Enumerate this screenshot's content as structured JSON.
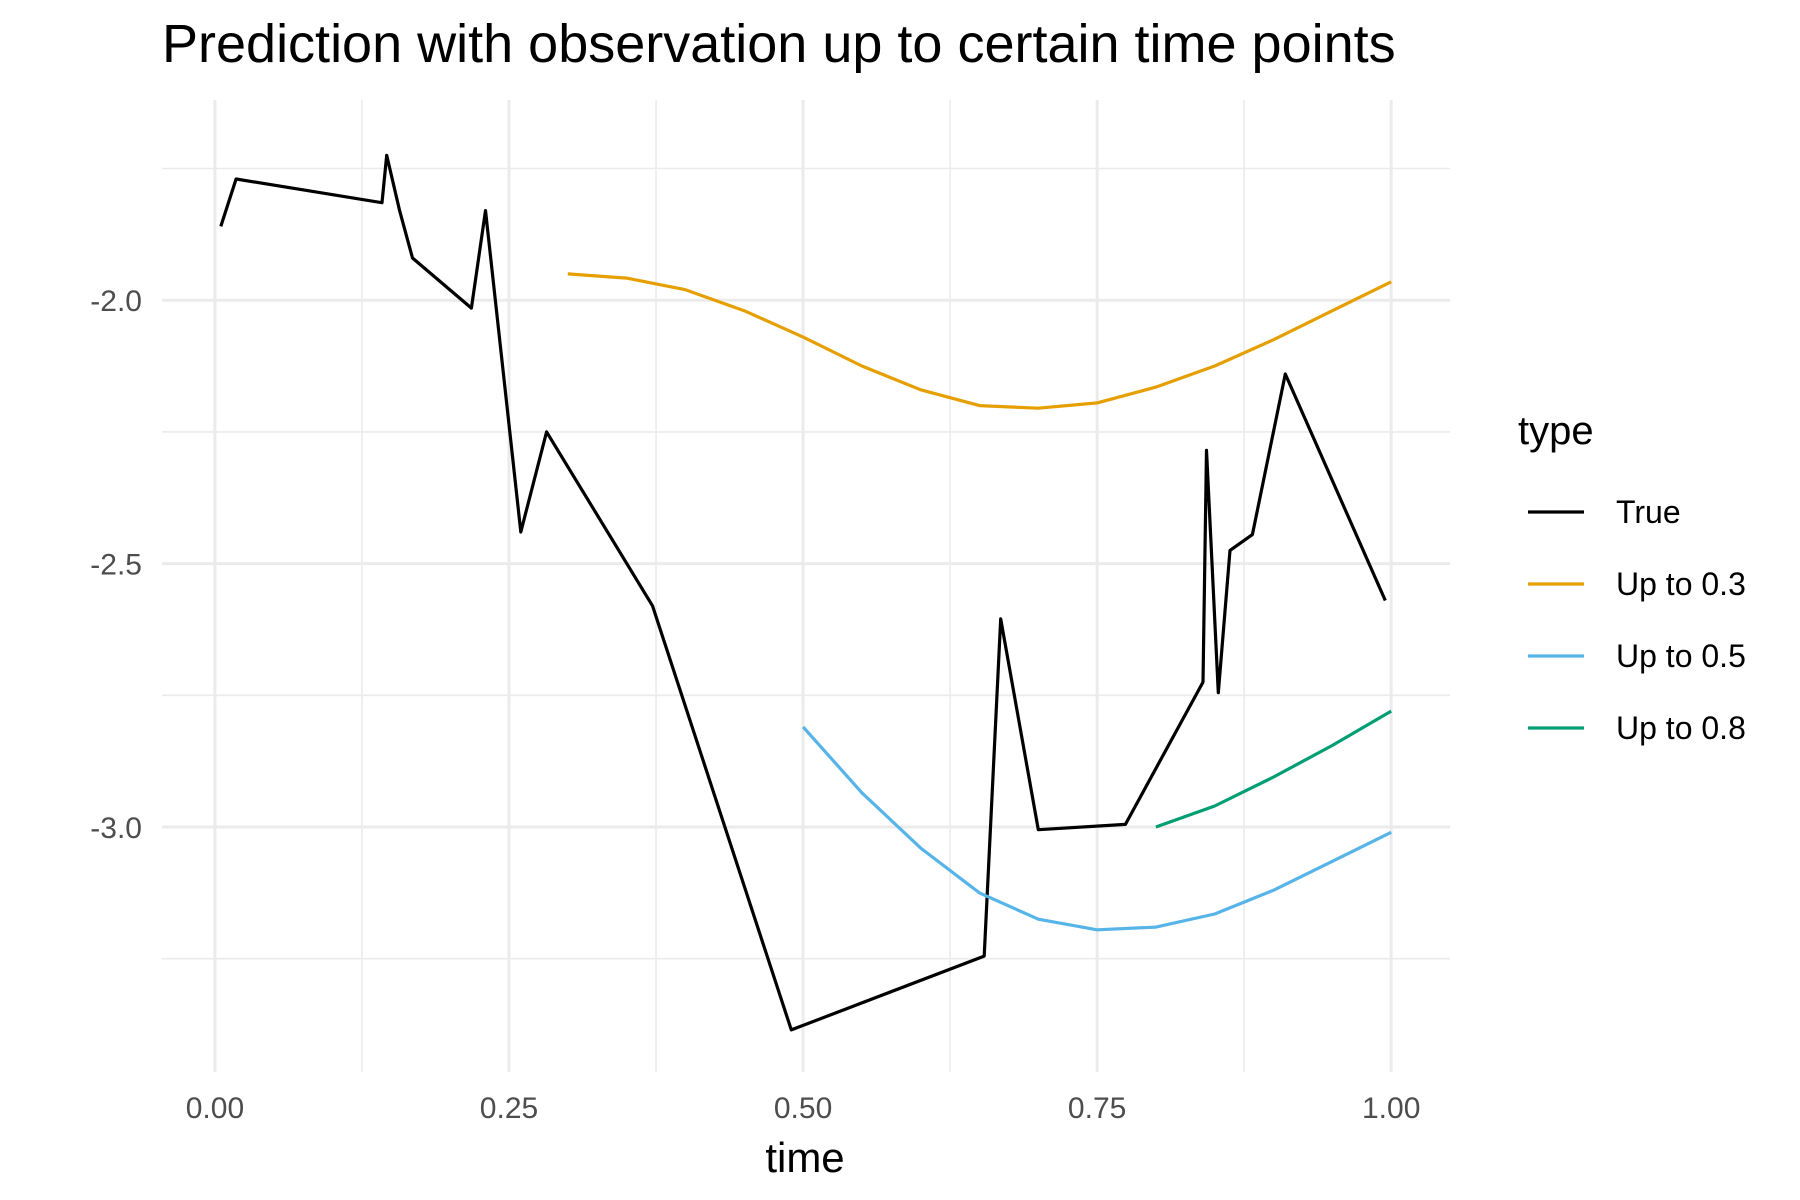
{
  "chart_data": {
    "type": "line",
    "title": "Prediction with observation up to certain time points",
    "xlabel": "time",
    "ylabel": "",
    "xlim": [
      -0.045,
      1.05
    ],
    "ylim": [
      -3.465,
      -1.62
    ],
    "x_ticks": [
      0.0,
      0.25,
      0.5,
      0.75,
      1.0
    ],
    "x_tick_labels": [
      "0.00",
      "0.25",
      "0.50",
      "0.75",
      "1.00"
    ],
    "x_minor": [
      0.125,
      0.375,
      0.625,
      0.875
    ],
    "y_ticks": [
      -3.0,
      -2.5,
      -2.0
    ],
    "y_tick_labels": [
      "-3.0",
      "-2.5",
      "-2.0"
    ],
    "y_minor": [
      -3.25,
      -2.75,
      -2.25,
      -1.75
    ],
    "grid": true,
    "legend": {
      "title": "type",
      "position": "right",
      "entries": [
        "True",
        "Up to 0.3",
        "Up to 0.5",
        "Up to 0.8"
      ]
    },
    "series": [
      {
        "name": "True",
        "color": "#000000",
        "points": [
          [
            0.005,
            -1.86
          ],
          [
            0.018,
            -1.77
          ],
          [
            0.142,
            -1.815
          ],
          [
            0.146,
            -1.725
          ],
          [
            0.157,
            -1.83
          ],
          [
            0.168,
            -1.92
          ],
          [
            0.218,
            -2.015
          ],
          [
            0.23,
            -1.83
          ],
          [
            0.26,
            -2.44
          ],
          [
            0.282,
            -2.25
          ],
          [
            0.372,
            -2.58
          ],
          [
            0.49,
            -3.385
          ],
          [
            0.654,
            -3.245
          ],
          [
            0.668,
            -2.605
          ],
          [
            0.7,
            -3.005
          ],
          [
            0.774,
            -2.995
          ],
          [
            0.84,
            -2.725
          ],
          [
            0.843,
            -2.285
          ],
          [
            0.853,
            -2.745
          ],
          [
            0.863,
            -2.475
          ],
          [
            0.882,
            -2.445
          ],
          [
            0.91,
            -2.14
          ],
          [
            0.995,
            -2.57
          ]
        ]
      },
      {
        "name": "Up to 0.3",
        "color": "#E69F00",
        "points": [
          [
            0.3,
            -1.95
          ],
          [
            0.35,
            -1.958
          ],
          [
            0.4,
            -1.98
          ],
          [
            0.45,
            -2.02
          ],
          [
            0.5,
            -2.07
          ],
          [
            0.55,
            -2.125
          ],
          [
            0.6,
            -2.17
          ],
          [
            0.65,
            -2.2
          ],
          [
            0.7,
            -2.205
          ],
          [
            0.75,
            -2.195
          ],
          [
            0.8,
            -2.165
          ],
          [
            0.85,
            -2.125
          ],
          [
            0.9,
            -2.075
          ],
          [
            0.95,
            -2.02
          ],
          [
            1.0,
            -1.965
          ]
        ]
      },
      {
        "name": "Up to 0.5",
        "color": "#56B4E9",
        "points": [
          [
            0.5,
            -2.81
          ],
          [
            0.55,
            -2.935
          ],
          [
            0.6,
            -3.04
          ],
          [
            0.65,
            -3.125
          ],
          [
            0.7,
            -3.175
          ],
          [
            0.75,
            -3.195
          ],
          [
            0.8,
            -3.19
          ],
          [
            0.85,
            -3.165
          ],
          [
            0.9,
            -3.12
          ],
          [
            0.95,
            -3.065
          ],
          [
            1.0,
            -3.01
          ]
        ]
      },
      {
        "name": "Up to 0.8",
        "color": "#009E73",
        "points": [
          [
            0.8,
            -3.0
          ],
          [
            0.85,
            -2.96
          ],
          [
            0.9,
            -2.905
          ],
          [
            0.95,
            -2.845
          ],
          [
            1.0,
            -2.78
          ]
        ]
      }
    ]
  }
}
